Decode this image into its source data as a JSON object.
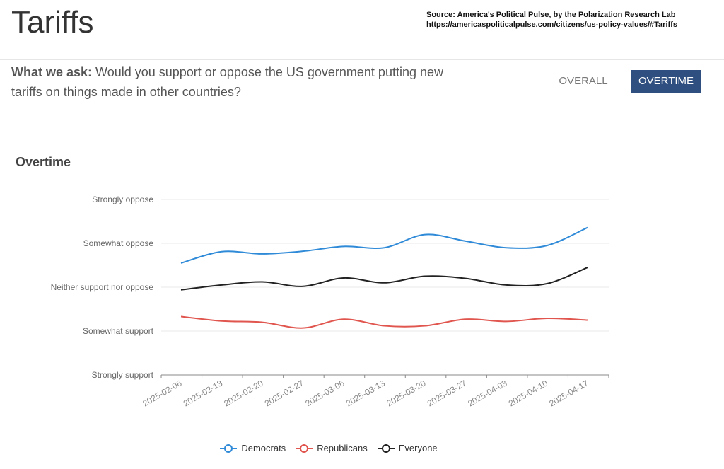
{
  "header": {
    "title": "Tariffs",
    "source_line1": "Source: America's Political Pulse, by the Polarization Research Lab",
    "source_line2": "https://americaspoliticalpulse.com/citizens/us-policy-values/#Tariffs"
  },
  "question": {
    "label": "What we ask:",
    "text": " Would you support or oppose the US government putting new tariffs on things made in other countries?"
  },
  "tabs": [
    {
      "label": "OVERALL",
      "active": false
    },
    {
      "label": "OVERTIME",
      "active": true
    }
  ],
  "colors": {
    "democrats": "#2f8ad8",
    "republicans": "#e0554e",
    "everyone": "#222222",
    "active_tab": "#2e4f7f"
  },
  "chart_data": {
    "type": "line",
    "title": "Overtime",
    "y_levels": [
      "Strongly support",
      "Somewhat support",
      "Neither support nor oppose",
      "Somewhat oppose",
      "Strongly oppose"
    ],
    "ylim": [
      1,
      5
    ],
    "x": [
      "2025-02-06",
      "2025-02-13",
      "2025-02-20",
      "2025-02-27",
      "2025-03-06",
      "2025-03-13",
      "2025-03-20",
      "2025-03-27",
      "2025-04-03",
      "2025-04-10",
      "2025-04-17"
    ],
    "grid": true,
    "legend_position": "bottom",
    "series": [
      {
        "name": "Democrats",
        "color_key": "democrats",
        "values": [
          3.55,
          3.81,
          3.76,
          3.82,
          3.93,
          3.9,
          4.2,
          4.05,
          3.9,
          3.95,
          4.36
        ]
      },
      {
        "name": "Republicans",
        "color_key": "republicans",
        "values": [
          2.33,
          2.23,
          2.2,
          2.07,
          2.27,
          2.12,
          2.12,
          2.27,
          2.22,
          2.29,
          2.25
        ]
      },
      {
        "name": "Everyone",
        "color_key": "everyone",
        "values": [
          2.94,
          3.05,
          3.12,
          3.02,
          3.21,
          3.1,
          3.25,
          3.2,
          3.05,
          3.08,
          3.45
        ]
      }
    ]
  }
}
